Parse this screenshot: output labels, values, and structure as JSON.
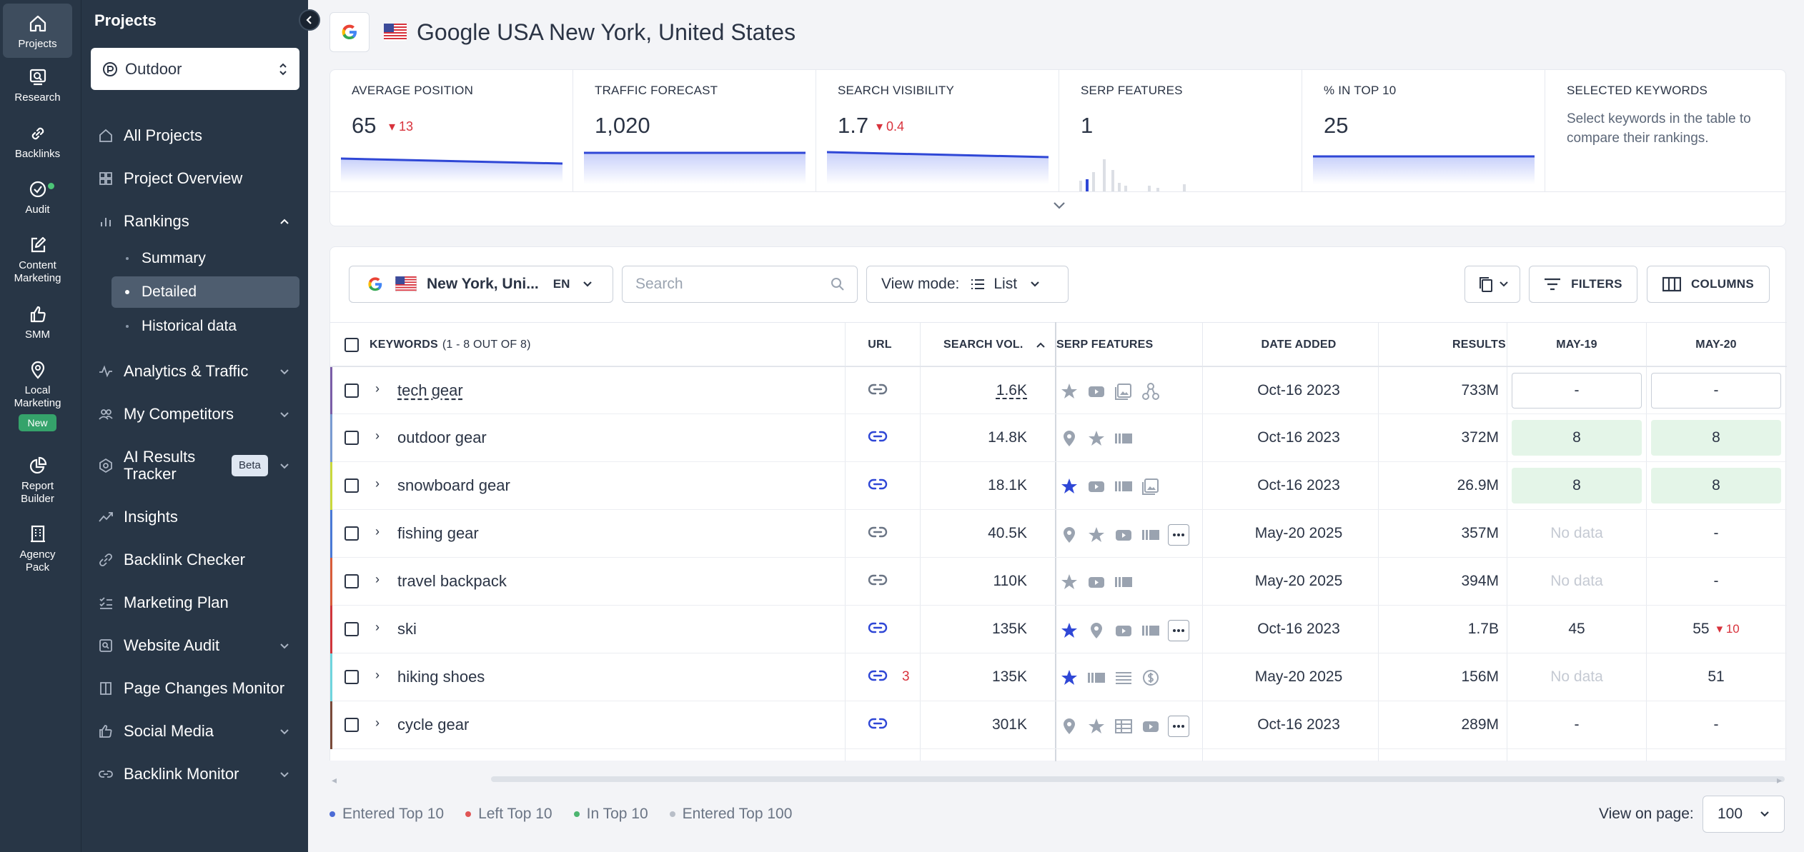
{
  "rail": [
    {
      "label": "Projects",
      "icon": "home-icon",
      "active": true
    },
    {
      "label": "Research",
      "icon": "research-icon"
    },
    {
      "label": "Backlinks",
      "icon": "link-icon"
    },
    {
      "label": "Audit",
      "icon": "audit-icon"
    },
    {
      "label": "Content Marketing",
      "icon": "edit-icon"
    },
    {
      "label": "SMM",
      "icon": "thumbs-up-icon"
    },
    {
      "label": "Local Marketing",
      "icon": "location-pin-icon",
      "badge": "New"
    },
    {
      "label": "Report Builder",
      "icon": "pie-chart-icon"
    },
    {
      "label": "Agency Pack",
      "icon": "building-icon"
    }
  ],
  "sidebar": {
    "title": "Projects",
    "project": "Outdoor",
    "nav": {
      "all_projects": "All Projects",
      "project_overview": "Project Overview",
      "rankings": "Rankings",
      "summary": "Summary",
      "detailed": "Detailed",
      "historical": "Historical data",
      "analytics": "Analytics & Traffic",
      "competitors": "My Competitors",
      "ai_tracker": "AI Results Tracker",
      "beta": "Beta",
      "insights": "Insights",
      "backlink_checker": "Backlink Checker",
      "marketing_plan": "Marketing Plan",
      "website_audit": "Website Audit",
      "page_changes": "Page Changes Monitor",
      "social_media": "Social Media",
      "backlink_monitor": "Backlink Monitor"
    }
  },
  "header": {
    "title": "Google USA New York, United States"
  },
  "metrics": {
    "avg_position": {
      "label": "AVERAGE POSITION",
      "value": "65",
      "delta": "13"
    },
    "traffic": {
      "label": "TRAFFIC FORECAST",
      "value": "1,020"
    },
    "visibility": {
      "label": "SEARCH VISIBILITY",
      "value": "1.7",
      "delta": "0.4"
    },
    "serp": {
      "label": "SERP FEATURES",
      "value": "1"
    },
    "top10": {
      "label": "% IN TOP 10",
      "value": "25"
    },
    "selected": {
      "label": "SELECTED KEYWORDS",
      "desc": "Select keywords in the table to compare their rankings."
    }
  },
  "toolbar": {
    "location": "New York, Uni...",
    "lang": "EN",
    "search_placeholder": "Search",
    "view_mode_label": "View mode:",
    "view_mode_value": "List",
    "filters": "FILTERS",
    "columns": "COLUMNS"
  },
  "table": {
    "headers": {
      "keywords": "KEYWORDS",
      "keywords_count": "(1 - 8 OUT OF 8)",
      "url": "URL",
      "volume": "SEARCH VOL.",
      "serp": "SERP FEATURES",
      "date": "DATE ADDED",
      "results": "RESULTS",
      "may19": "MAY-19",
      "may20": "MAY-20"
    },
    "rows": [
      {
        "keyword": "tech gear",
        "color": "#7b5ea7",
        "volume": "1.6K",
        "date": "Oct-16 2023",
        "results": "733M",
        "may19": "-",
        "may20": "-",
        "serp": [
          "star",
          "video",
          "image",
          "sitelinks"
        ]
      },
      {
        "keyword": "outdoor gear",
        "color": "#7a9bd1",
        "volume": "14.8K",
        "date": "Oct-16 2023",
        "results": "372M",
        "may19": "8",
        "may20": "8",
        "serp": [
          "pin",
          "star",
          "carousel"
        ]
      },
      {
        "keyword": "snowboard gear",
        "color": "#c9d83d",
        "volume": "18.1K",
        "date": "Oct-16 2023",
        "results": "26.9M",
        "may19": "8",
        "may20": "8",
        "serp": [
          "star-blue",
          "video",
          "carousel",
          "image"
        ]
      },
      {
        "keyword": "fishing gear",
        "color": "#4b7ad6",
        "volume": "40.5K",
        "date": "May-20 2025",
        "results": "357M",
        "may19": "No data",
        "may20": "-",
        "serp": [
          "pin",
          "star",
          "video",
          "carousel",
          "more"
        ]
      },
      {
        "keyword": "travel backpack",
        "color": "#d85c3a",
        "volume": "110K",
        "date": "May-20 2025",
        "results": "394M",
        "may19": "No data",
        "may20": "-",
        "serp": [
          "star",
          "video",
          "carousel"
        ]
      },
      {
        "keyword": "ski",
        "color": "#d0363c",
        "volume": "135K",
        "date": "Oct-16 2023",
        "results": "1.7B",
        "may19": "45",
        "may20": "55",
        "may20_delta": "10",
        "serp": [
          "star-blue",
          "pin",
          "video",
          "carousel",
          "more"
        ]
      },
      {
        "keyword": "hiking shoes",
        "color": "#6fd5dd",
        "volume": "135K",
        "date": "May-20 2025",
        "results": "156M",
        "may19": "No data",
        "may20": "51",
        "url_count": "3",
        "serp": [
          "star-blue",
          "carousel",
          "list",
          "dollar"
        ]
      },
      {
        "keyword": "cycle gear",
        "color": "#7a4a3a",
        "volume": "301K",
        "date": "Oct-16 2023",
        "results": "289M",
        "may19": "-",
        "may20": "-",
        "serp": [
          "pin",
          "star",
          "table",
          "video",
          "more"
        ]
      }
    ]
  },
  "legend": [
    {
      "label": "Entered Top 10",
      "color": "#4b6bd6"
    },
    {
      "label": "Left Top 10",
      "color": "#e05555"
    },
    {
      "label": "In Top 10",
      "color": "#4cb570"
    },
    {
      "label": "Entered Top 100",
      "color": "#b8bec8"
    }
  ],
  "pagination": {
    "label": "View on page:",
    "value": "100"
  },
  "colors": {
    "accent": "#2f47d6",
    "rail_bg": "#283646",
    "danger": "#d8323c",
    "positive_bg": "#e4f5e8"
  }
}
